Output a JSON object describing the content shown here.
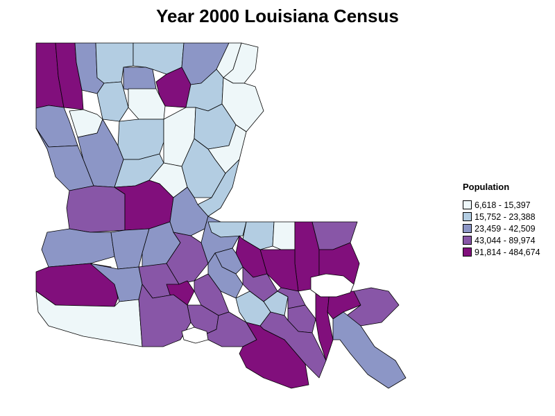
{
  "title": "Year 2000 Louisiana Census",
  "legend": {
    "title": "Population",
    "items": [
      {
        "label": "  6,618 - 15,397",
        "color": "#eef7f9"
      },
      {
        "label": "15,752 - 23,388",
        "color": "#b3cde2"
      },
      {
        "label": "23,459 - 42,509",
        "color": "#8c96c6"
      },
      {
        "label": "43,044 - 89,974",
        "color": "#8856a7"
      },
      {
        "label": "91,814 - 484,674",
        "color": "#810f7c"
      }
    ]
  },
  "colors": {
    "outline": "#000000",
    "water": "#ffffff"
  }
}
